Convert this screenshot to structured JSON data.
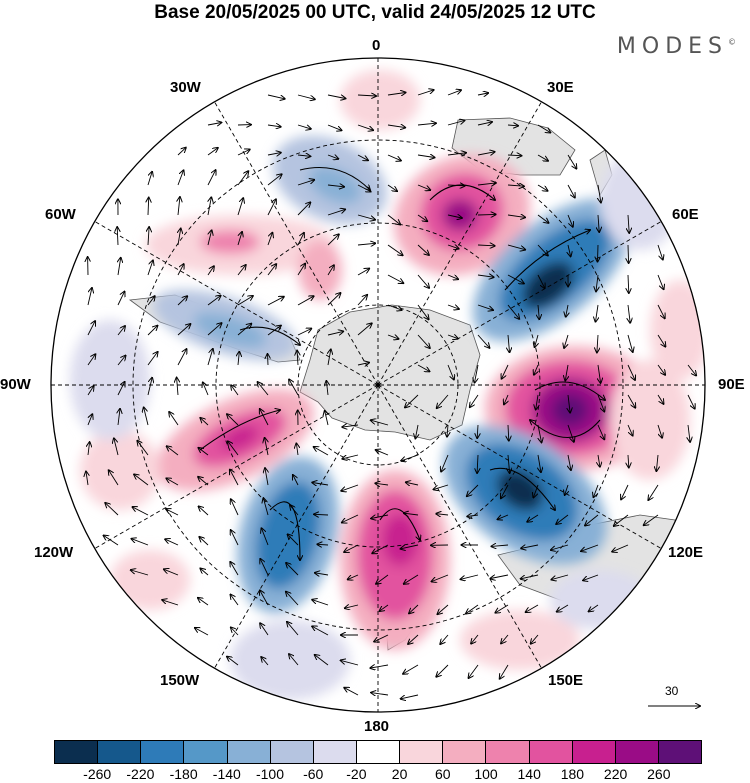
{
  "title": "Base 20/05/2025 00 UTC, valid 24/05/2025 12 UTC",
  "brand": "MODES",
  "brand_mark": "©",
  "longitude_labels": {
    "lon0": "0",
    "lon30e": "30E",
    "lon60e": "60E",
    "lon90e": "90E",
    "lon120e": "120E",
    "lon150e": "150E",
    "lon180": "180",
    "lon150w": "150W",
    "lon120w": "120W",
    "lon90w": "90W",
    "lon60w": "60W",
    "lon30w": "30W"
  },
  "reference_vector": "30",
  "colorbar": {
    "colors": [
      "#0b2e4f",
      "#15588c",
      "#2e7bb8",
      "#5598c8",
      "#88b0d6",
      "#b5c4e0",
      "#dcdcee",
      "#ffffff",
      "#f9d6dc",
      "#f4aec0",
      "#ee82ad",
      "#e2539f",
      "#c8208f",
      "#9a0c86",
      "#5e1077"
    ],
    "labels": [
      "-260",
      "-220",
      "-180",
      "-140",
      "-100",
      "-60",
      "-20",
      "20",
      "60",
      "100",
      "140",
      "180",
      "220",
      "260"
    ]
  },
  "map": {
    "ocean_color": "#ffffff",
    "land_color": "#e6e6e6",
    "anomalies": [
      {
        "name": "positive-anomaly-30e",
        "value": 180
      },
      {
        "name": "negative-anomaly-60e",
        "value": -220
      },
      {
        "name": "positive-anomaly-90e",
        "value": 260
      },
      {
        "name": "negative-anomaly-120e",
        "value": -260
      },
      {
        "name": "positive-anomaly-170e",
        "value": 180
      },
      {
        "name": "negative-anomaly-150w",
        "value": -180
      },
      {
        "name": "positive-anomaly-110w",
        "value": 180
      },
      {
        "name": "negative-anomaly-70w",
        "value": -100
      },
      {
        "name": "positive-anomaly-50w",
        "value": 100
      },
      {
        "name": "negative-anomaly-15w",
        "value": -100
      }
    ]
  }
}
